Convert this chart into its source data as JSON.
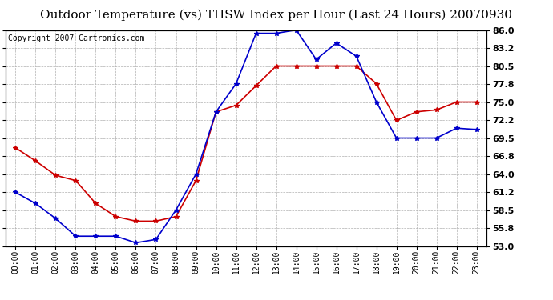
{
  "title": "Outdoor Temperature (vs) THSW Index per Hour (Last 24 Hours) 20070930",
  "copyright": "Copyright 2007 Cartronics.com",
  "hours": [
    "00:00",
    "01:00",
    "02:00",
    "03:00",
    "04:00",
    "05:00",
    "06:00",
    "07:00",
    "08:00",
    "09:00",
    "10:00",
    "11:00",
    "12:00",
    "13:00",
    "14:00",
    "15:00",
    "16:00",
    "17:00",
    "18:00",
    "19:00",
    "20:00",
    "21:00",
    "22:00",
    "23:00"
  ],
  "temp": [
    61.2,
    59.5,
    57.2,
    54.5,
    54.5,
    54.5,
    53.5,
    54.0,
    58.5,
    64.0,
    73.5,
    77.8,
    85.5,
    85.5,
    86.0,
    81.5,
    84.0,
    82.0,
    75.0,
    69.5,
    69.5,
    69.5,
    71.0,
    70.8
  ],
  "thsw": [
    68.0,
    66.0,
    63.8,
    63.0,
    59.5,
    57.5,
    56.8,
    56.8,
    57.5,
    63.0,
    73.5,
    74.5,
    77.5,
    80.5,
    80.5,
    80.5,
    80.5,
    80.5,
    77.8,
    72.2,
    73.5,
    73.8,
    75.0,
    75.0
  ],
  "temp_color": "#0000cc",
  "thsw_color": "#cc0000",
  "bg_color": "#ffffff",
  "plot_bg": "#ffffff",
  "grid_color": "#b0b0b0",
  "ylim": [
    53.0,
    86.0
  ],
  "yticks": [
    53.0,
    55.8,
    58.5,
    61.2,
    64.0,
    66.8,
    69.5,
    72.2,
    75.0,
    77.8,
    80.5,
    83.2,
    86.0
  ],
  "title_fontsize": 11,
  "copyright_fontsize": 7,
  "marker": "*",
  "marker_size": 4,
  "line_width": 1.2
}
